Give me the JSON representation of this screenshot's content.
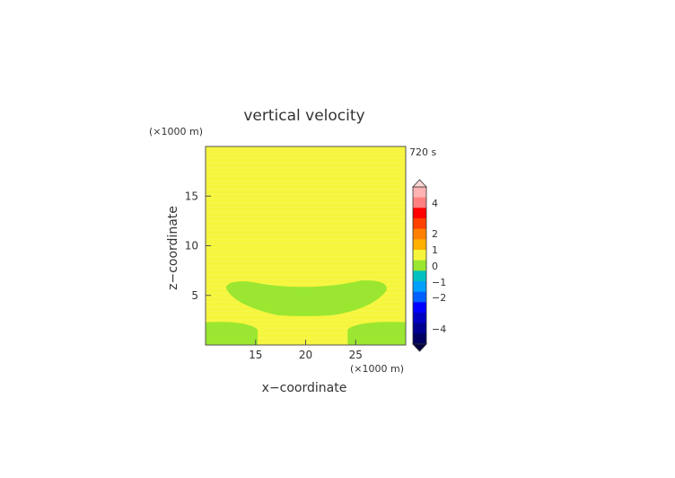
{
  "chart_data": {
    "type": "heatmap",
    "title": "vertical velocity",
    "time_label": "720 s",
    "xlabel": "x−coordinate",
    "ylabel": "z−coordinate",
    "x_scale_label": "(×1000 m)",
    "y_scale_label": "(×1000 m)",
    "xlim": [
      10,
      30
    ],
    "ylim": [
      0,
      20
    ],
    "x_ticks": [
      15,
      20,
      25
    ],
    "y_ticks": [
      5,
      10,
      15
    ],
    "background_level_color": "#f5f53c",
    "regions": [
      {
        "level": "0 to 0.5",
        "color": "#9ae630",
        "shape": "upper-band",
        "x_range": [
          11.5,
          28.3
        ],
        "z_range": [
          3.0,
          6.5
        ]
      },
      {
        "level": "0 to 0.5",
        "color": "#9ae630",
        "shape": "lower-left",
        "x_range": [
          10,
          15.2
        ],
        "z_range": [
          0,
          2.3
        ]
      },
      {
        "level": "0 to 0.5",
        "color": "#9ae630",
        "shape": "lower-right",
        "x_range": [
          24.2,
          30
        ],
        "z_range": [
          0,
          2.3
        ]
      }
    ],
    "colorbar": {
      "labels": [
        "4",
        "2",
        "1",
        "0",
        "−1",
        "−2",
        "−4"
      ],
      "segments": [
        "#ffb3b3",
        "#ff8080",
        "#ff0000",
        "#ff4000",
        "#ff8000",
        "#ffb000",
        "#f5f53c",
        "#9ae630",
        "#00c0c0",
        "#00a0ff",
        "#0060ff",
        "#0000ff",
        "#0000c0",
        "#000090",
        "#000060"
      ]
    }
  }
}
